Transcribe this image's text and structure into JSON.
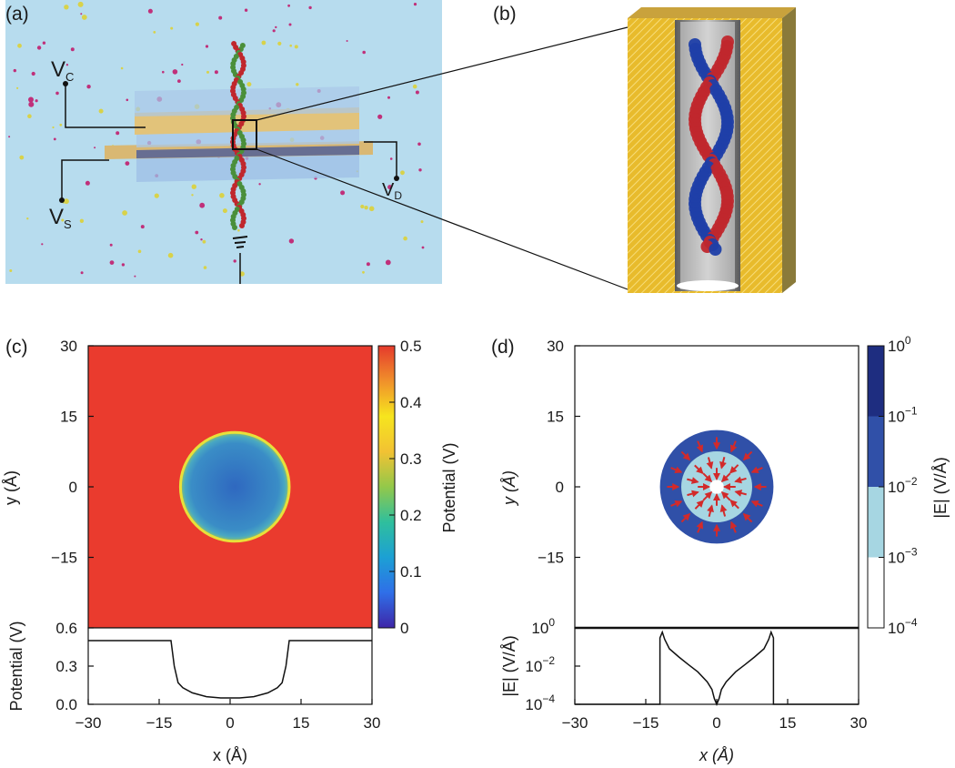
{
  "panel_labels": {
    "a": "(a)",
    "b": "(b)",
    "c": "(c)",
    "d": "(d)"
  },
  "schematic": {
    "labels": {
      "vc": "V",
      "vc_sub": "C",
      "vs": "V",
      "vs_sub": "S",
      "vd": "V",
      "vd_sub": "D"
    },
    "colors": {
      "water": "#b7dcee",
      "electrode": "#e2c37a",
      "dielectric": "#a9c8e8",
      "dna_red": "#c0272d",
      "dna_blue": "#1f3fa8",
      "gold": "#e6b62a"
    }
  },
  "chart_data": [
    {
      "id": "c",
      "type": "heatmap",
      "title": "",
      "xlabel": "x (Å)",
      "ylabel": "y (Å)",
      "xlim": [
        -30,
        30
      ],
      "ylim": [
        -30,
        30
      ],
      "x_ticks": [
        -30,
        -15,
        0,
        15,
        30
      ],
      "y_ticks": [
        -15,
        0,
        15,
        30
      ],
      "x_tick_labels": [
        "−30",
        "−15",
        "0",
        "15",
        "30"
      ],
      "y_tick_labels": [
        "−15",
        "0",
        "15",
        "30"
      ],
      "field": {
        "pore_radius": 11.5,
        "pore_center": [
          1,
          0
        ],
        "outside_value": 0.5,
        "inside_min": 0.05
      },
      "colorbar": {
        "label": "Potential (V)",
        "range": [
          0,
          0.5
        ],
        "ticks": [
          0,
          0.1,
          0.2,
          0.3,
          0.4,
          0.5
        ],
        "tick_labels": [
          "0",
          "0.1",
          "0.2",
          "0.3",
          "0.4",
          "0.5"
        ],
        "colors": [
          "#3e26a8",
          "#2f6fe8",
          "#1ca0d4",
          "#2fbf9d",
          "#93c84a",
          "#f2c233",
          "#f6e51e",
          "#f0902b",
          "#e53a2c"
        ]
      },
      "colors": {
        "outside": "#ea3b2e",
        "rim": "#e8e03a",
        "inside_center": "#2f6fc8",
        "inside_edge": "#3a95c8"
      },
      "profile": {
        "ylabel": "Potential (V)",
        "ylim": [
          0,
          0.6
        ],
        "y_ticks": [
          0,
          0.3,
          0.6
        ],
        "y_tick_labels": [
          "0.0",
          "0.3",
          "0.6"
        ],
        "x": [
          -30,
          -12.5,
          -11.8,
          -11,
          -10,
          -8,
          -5,
          -2,
          0,
          2,
          5,
          8,
          10,
          11,
          11.8,
          12.5,
          30
        ],
        "y": [
          0.5,
          0.5,
          0.3,
          0.17,
          0.13,
          0.09,
          0.06,
          0.05,
          0.05,
          0.05,
          0.06,
          0.09,
          0.13,
          0.17,
          0.3,
          0.5,
          0.5
        ]
      }
    },
    {
      "id": "d",
      "type": "heatmap",
      "title": "",
      "xlabel": "x (Å)",
      "ylabel": "y (Å)",
      "xlim": [
        -30,
        30
      ],
      "ylim": [
        -30,
        30
      ],
      "x_ticks": [
        -30,
        -15,
        0,
        15,
        30
      ],
      "y_ticks": [
        -15,
        0,
        15,
        30
      ],
      "x_tick_labels": [
        "−30",
        "−15",
        "0",
        "15",
        "30"
      ],
      "y_tick_labels": [
        "−15",
        "0",
        "15",
        "30"
      ],
      "field": {
        "outer_radius": 12,
        "band1_radius": 7.5,
        "band2_radius": 1.5,
        "center": [
          0,
          0
        ]
      },
      "colorbar": {
        "label": "|E| (V/Å)",
        "scale": "log",
        "range": [
          0.0001,
          1
        ],
        "ticks": [
          0.0001,
          0.001,
          0.01,
          0.1,
          1
        ],
        "tick_labels": [
          "10",
          "10",
          "10",
          "10",
          "10"
        ],
        "tick_exponents": [
          "−4",
          "−3",
          "−2",
          "−1",
          "0"
        ],
        "bands": [
          "#ffffff",
          "#a6d6e2",
          "#3050a8",
          "#1e2d80"
        ]
      },
      "arrow_color": "#d22a2a",
      "profile": {
        "ylabel": "|E| (V/Å)",
        "scale": "log",
        "ylim": [
          0.0001,
          1
        ],
        "y_ticks": [
          0.0001,
          0.01,
          1
        ],
        "y_tick_labels": [
          "10",
          "10",
          "10"
        ],
        "y_tick_exponents": [
          "−4",
          "−2",
          "0"
        ],
        "x": [
          -30,
          -12,
          -12,
          -11.5,
          -11,
          -10,
          -8,
          -6,
          -4,
          -2,
          -1,
          -0.5,
          0,
          0.5,
          1,
          2,
          4,
          6,
          8,
          10,
          11,
          11.5,
          12,
          12,
          30
        ],
        "y": [
          0,
          0,
          0.3,
          0.6,
          0.25,
          0.08,
          0.03,
          0.012,
          0.005,
          0.0015,
          0.0006,
          0.0002,
          0.0001,
          0.0002,
          0.0006,
          0.0015,
          0.005,
          0.012,
          0.03,
          0.08,
          0.25,
          0.6,
          0.3,
          0,
          0
        ]
      }
    }
  ]
}
